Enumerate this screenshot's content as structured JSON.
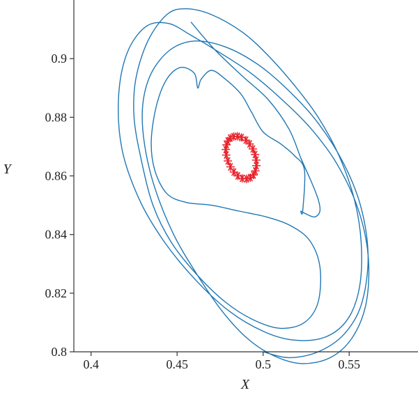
{
  "chart_data": {
    "type": "line",
    "xlabel": "X",
    "ylabel": "Y",
    "xlim": [
      0.39,
      0.59
    ],
    "ylim": [
      0.8,
      0.92
    ],
    "xticks": [
      0.4,
      0.45,
      0.5,
      0.55
    ],
    "yticks": [
      0.8,
      0.82,
      0.84,
      0.86,
      0.88,
      0.9
    ],
    "xtick_labels": [
      "0.4",
      "0.45",
      "0.5",
      "0.55"
    ],
    "ytick_labels": [
      "0.8",
      "0.82",
      "0.84",
      "0.86",
      "0.88",
      "0.9"
    ],
    "grid": false,
    "series": [
      {
        "style": "line",
        "color": "#1f77b4",
        "points": [
          [
            0.458,
            0.9125
          ],
          [
            0.472,
            0.903
          ],
          [
            0.488,
            0.894
          ],
          [
            0.503,
            0.886
          ],
          [
            0.515,
            0.876
          ],
          [
            0.522,
            0.866
          ],
          [
            0.528,
            0.858
          ],
          [
            0.532,
            0.852
          ],
          [
            0.533,
            0.848
          ],
          [
            0.53,
            0.846
          ],
          [
            0.525,
            0.847
          ],
          [
            0.522,
            0.848
          ],
          [
            0.523,
            0.848
          ],
          [
            0.524,
            0.862
          ],
          [
            0.518,
            0.867
          ],
          [
            0.51,
            0.871
          ],
          [
            0.5,
            0.875
          ],
          [
            0.493,
            0.882
          ],
          [
            0.487,
            0.888
          ],
          [
            0.478,
            0.893
          ],
          [
            0.47,
            0.896
          ],
          [
            0.464,
            0.893
          ],
          [
            0.462,
            0.89
          ],
          [
            0.46,
            0.895
          ],
          [
            0.452,
            0.897
          ],
          [
            0.444,
            0.893
          ],
          [
            0.438,
            0.884
          ],
          [
            0.435,
            0.872
          ],
          [
            0.437,
            0.862
          ],
          [
            0.444,
            0.854
          ],
          [
            0.455,
            0.851
          ],
          [
            0.47,
            0.85
          ],
          [
            0.486,
            0.848
          ],
          [
            0.502,
            0.846
          ],
          [
            0.516,
            0.843
          ],
          [
            0.527,
            0.838
          ],
          [
            0.533,
            0.829
          ],
          [
            0.532,
            0.817
          ],
          [
            0.524,
            0.81
          ],
          [
            0.51,
            0.808
          ],
          [
            0.494,
            0.811
          ],
          [
            0.478,
            0.817
          ],
          [
            0.462,
            0.826
          ],
          [
            0.447,
            0.837
          ],
          [
            0.436,
            0.85
          ],
          [
            0.429,
            0.866
          ],
          [
            0.425,
            0.88
          ],
          [
            0.426,
            0.893
          ],
          [
            0.433,
            0.906
          ],
          [
            0.444,
            0.915
          ],
          [
            0.455,
            0.917
          ],
          [
            0.47,
            0.915
          ],
          [
            0.488,
            0.909
          ],
          [
            0.503,
            0.901
          ],
          [
            0.518,
            0.891
          ],
          [
            0.532,
            0.88
          ],
          [
            0.544,
            0.867
          ],
          [
            0.553,
            0.852
          ],
          [
            0.557,
            0.837
          ],
          [
            0.556,
            0.822
          ],
          [
            0.549,
            0.811
          ],
          [
            0.536,
            0.805
          ],
          [
            0.518,
            0.804
          ],
          [
            0.5,
            0.807
          ],
          [
            0.48,
            0.814
          ],
          [
            0.46,
            0.825
          ],
          [
            0.442,
            0.838
          ],
          [
            0.428,
            0.852
          ],
          [
            0.418,
            0.869
          ],
          [
            0.416,
            0.887
          ],
          [
            0.421,
            0.902
          ],
          [
            0.432,
            0.911
          ],
          [
            0.445,
            0.912
          ],
          [
            0.458,
            0.908
          ],
          [
            0.475,
            0.902
          ],
          [
            0.493,
            0.895
          ],
          [
            0.511,
            0.886
          ],
          [
            0.528,
            0.876
          ],
          [
            0.543,
            0.864
          ],
          [
            0.555,
            0.849
          ],
          [
            0.561,
            0.833
          ],
          [
            0.56,
            0.817
          ],
          [
            0.552,
            0.805
          ],
          [
            0.539,
            0.798
          ],
          [
            0.522,
            0.796
          ],
          [
            0.505,
            0.799
          ],
          [
            0.49,
            0.805
          ],
          [
            0.476,
            0.814
          ],
          [
            0.462,
            0.826
          ],
          [
            0.448,
            0.84
          ],
          [
            0.437,
            0.856
          ],
          [
            0.431,
            0.871
          ],
          [
            0.43,
            0.884
          ],
          [
            0.435,
            0.895
          ],
          [
            0.446,
            0.903
          ],
          [
            0.46,
            0.906
          ],
          [
            0.478,
            0.904
          ],
          [
            0.497,
            0.898
          ],
          [
            0.515,
            0.889
          ],
          [
            0.532,
            0.878
          ],
          [
            0.547,
            0.864
          ],
          [
            0.557,
            0.849
          ],
          [
            0.561,
            0.832
          ],
          [
            0.557,
            0.816
          ],
          [
            0.547,
            0.806
          ],
          [
            0.532,
            0.8
          ],
          [
            0.515,
            0.798
          ],
          [
            0.5,
            0.8
          ]
        ]
      },
      {
        "style": "markers",
        "marker": "asterisk",
        "color": "#e8212a",
        "points": [
          [
            0.4787,
            0.8706
          ],
          [
            0.4795,
            0.8719
          ],
          [
            0.4809,
            0.8729
          ],
          [
            0.4829,
            0.8734
          ],
          [
            0.4851,
            0.8735
          ],
          [
            0.4875,
            0.8731
          ],
          [
            0.49,
            0.8722
          ],
          [
            0.4922,
            0.8709
          ],
          [
            0.494,
            0.8692
          ],
          [
            0.4953,
            0.8673
          ],
          [
            0.496,
            0.8654
          ],
          [
            0.4961,
            0.8635
          ],
          [
            0.4955,
            0.8617
          ],
          [
            0.4944,
            0.8603
          ],
          [
            0.4926,
            0.8594
          ],
          [
            0.4904,
            0.859
          ],
          [
            0.4878,
            0.8592
          ],
          [
            0.4853,
            0.86
          ],
          [
            0.483,
            0.8613
          ],
          [
            0.481,
            0.8631
          ],
          [
            0.4795,
            0.8651
          ],
          [
            0.4786,
            0.8671
          ],
          [
            0.4783,
            0.869
          ]
        ]
      }
    ]
  }
}
